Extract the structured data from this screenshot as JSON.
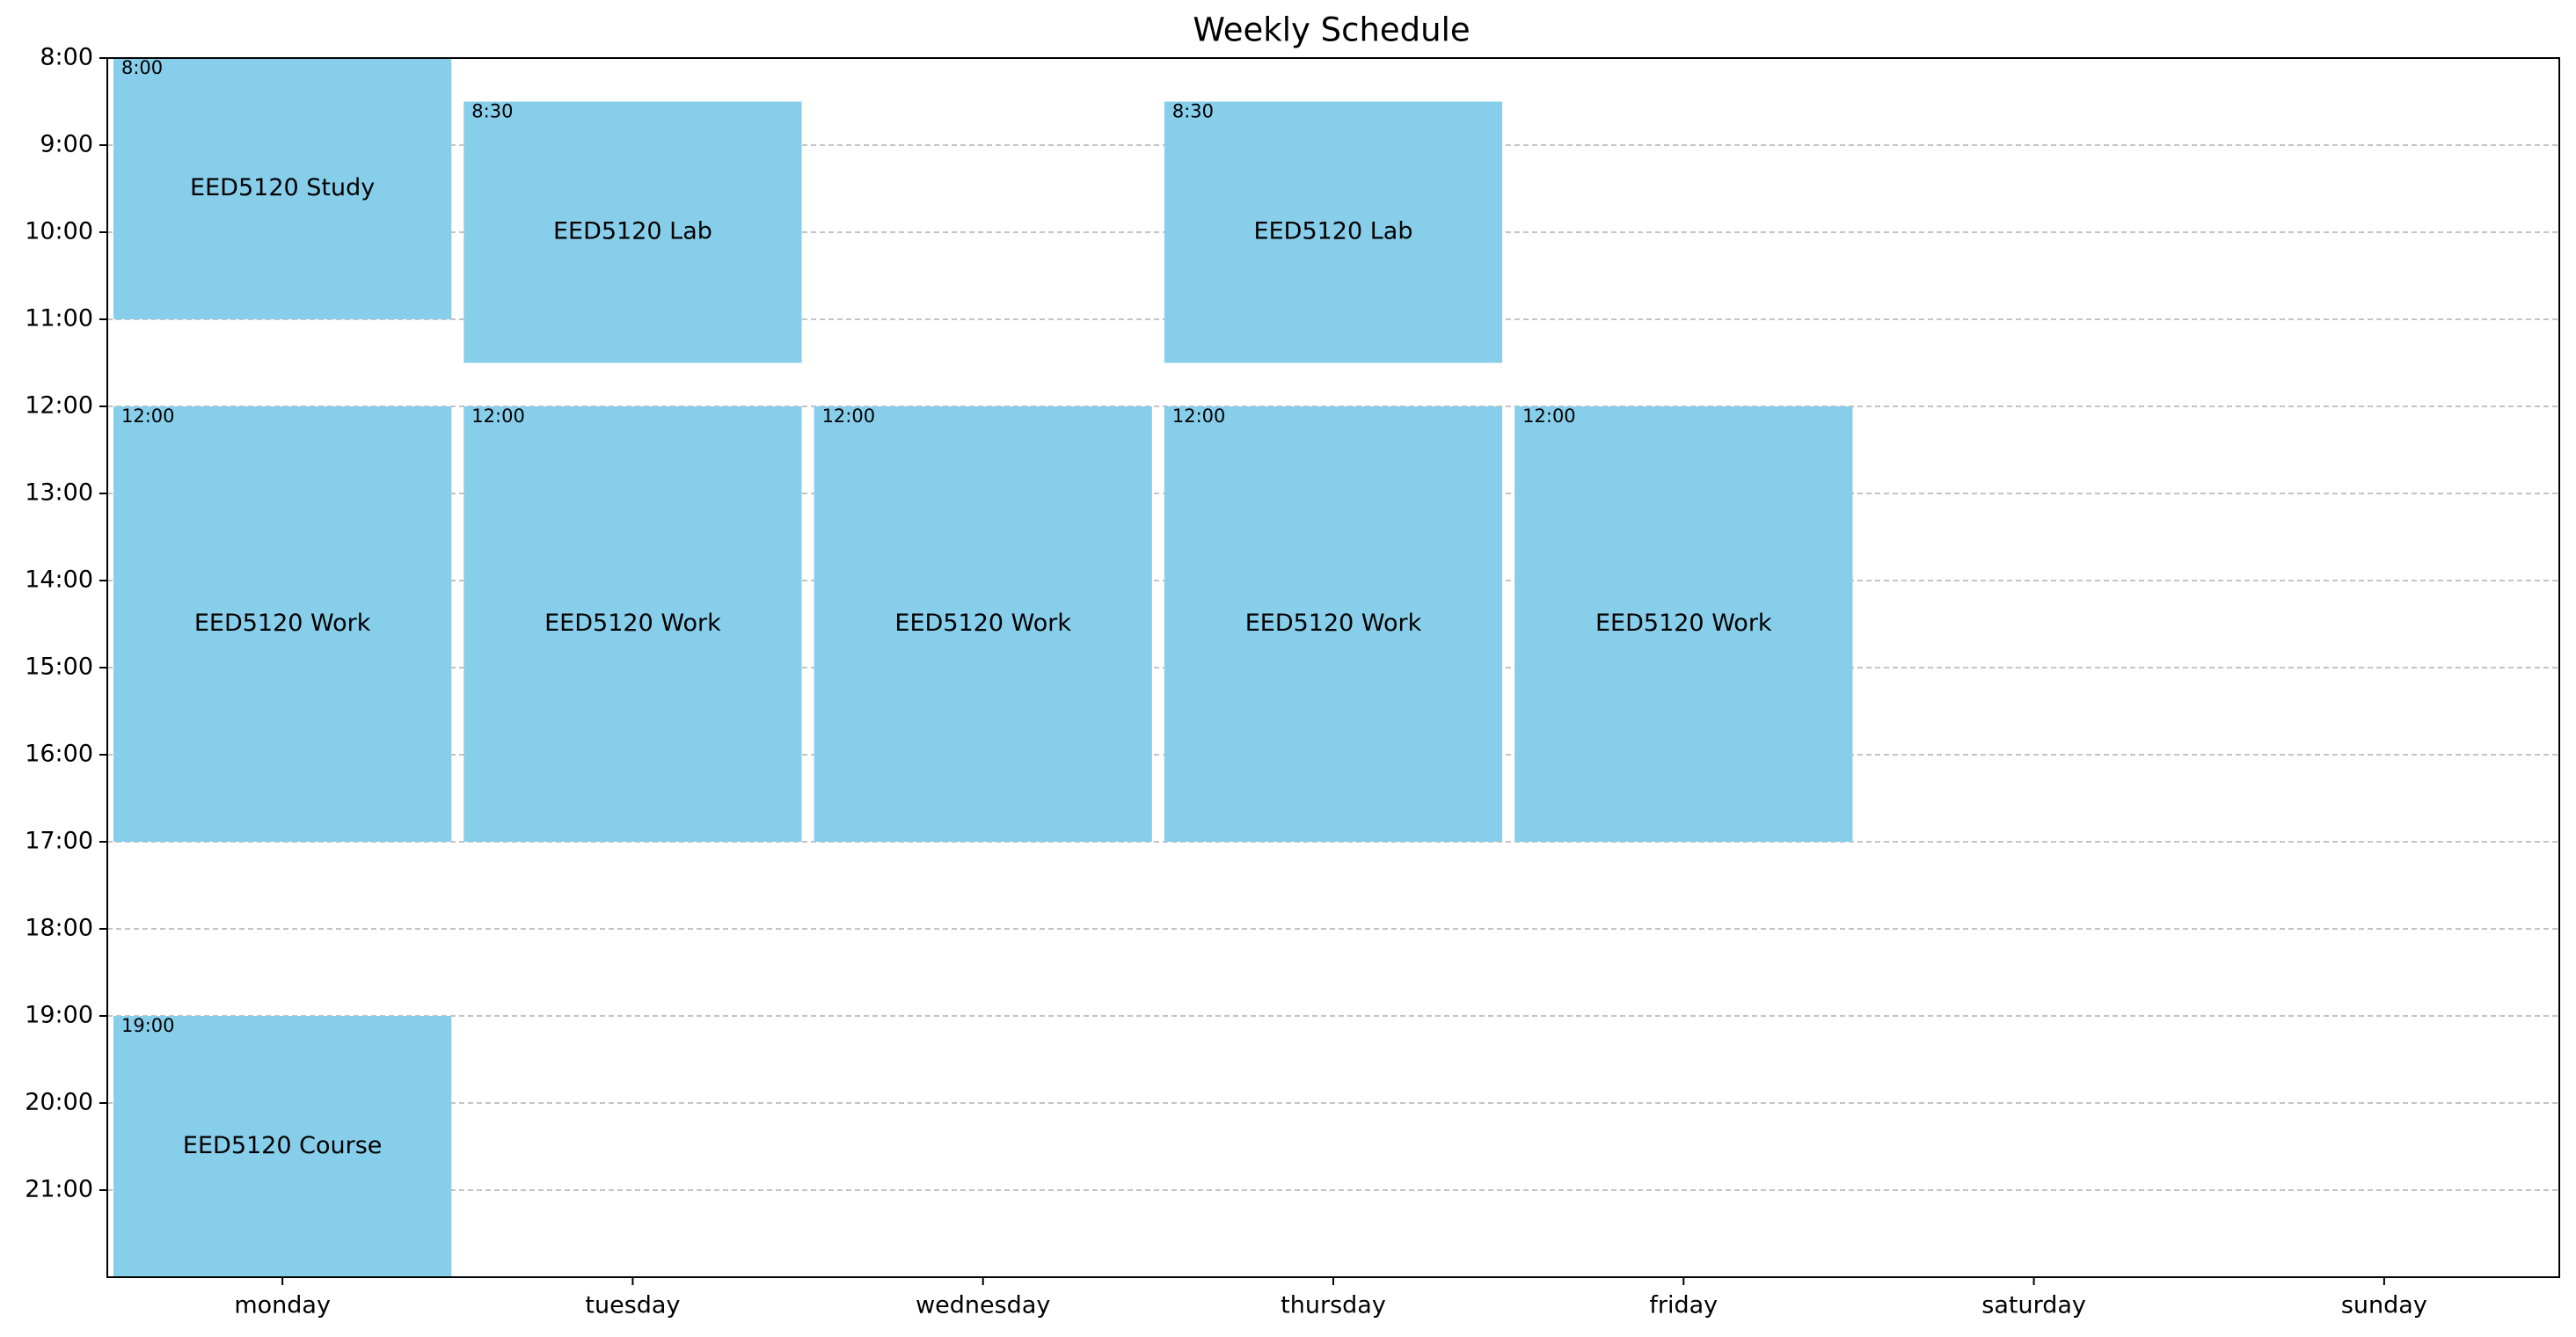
{
  "chart_data": {
    "type": "schedule",
    "title": "Weekly Schedule",
    "days": [
      "monday",
      "tuesday",
      "wednesday",
      "thursday",
      "friday",
      "saturday",
      "sunday"
    ],
    "y_tick_labels": [
      "8:00",
      "9:00",
      "10:00",
      "11:00",
      "12:00",
      "13:00",
      "14:00",
      "15:00",
      "16:00",
      "17:00",
      "18:00",
      "19:00",
      "20:00",
      "21:00"
    ],
    "ylim": [
      8,
      22
    ],
    "grid": "horizontal dashed",
    "block_color": "#87CEEB",
    "events": [
      {
        "day": "monday",
        "start": 8.0,
        "end": 11.0,
        "label": "EED5120 Study",
        "start_label": "8:00"
      },
      {
        "day": "tuesday",
        "start": 8.5,
        "end": 11.5,
        "label": "EED5120 Lab",
        "start_label": "8:30"
      },
      {
        "day": "thursday",
        "start": 8.5,
        "end": 11.5,
        "label": "EED5120 Lab",
        "start_label": "8:30"
      },
      {
        "day": "monday",
        "start": 12.0,
        "end": 17.0,
        "label": "EED5120 Work",
        "start_label": "12:00"
      },
      {
        "day": "tuesday",
        "start": 12.0,
        "end": 17.0,
        "label": "EED5120 Work",
        "start_label": "12:00"
      },
      {
        "day": "wednesday",
        "start": 12.0,
        "end": 17.0,
        "label": "EED5120 Work",
        "start_label": "12:00"
      },
      {
        "day": "thursday",
        "start": 12.0,
        "end": 17.0,
        "label": "EED5120 Work",
        "start_label": "12:00"
      },
      {
        "day": "friday",
        "start": 12.0,
        "end": 17.0,
        "label": "EED5120 Work",
        "start_label": "12:00"
      },
      {
        "day": "monday",
        "start": 19.0,
        "end": 22.0,
        "label": "EED5120 Course",
        "start_label": "19:00"
      }
    ]
  }
}
